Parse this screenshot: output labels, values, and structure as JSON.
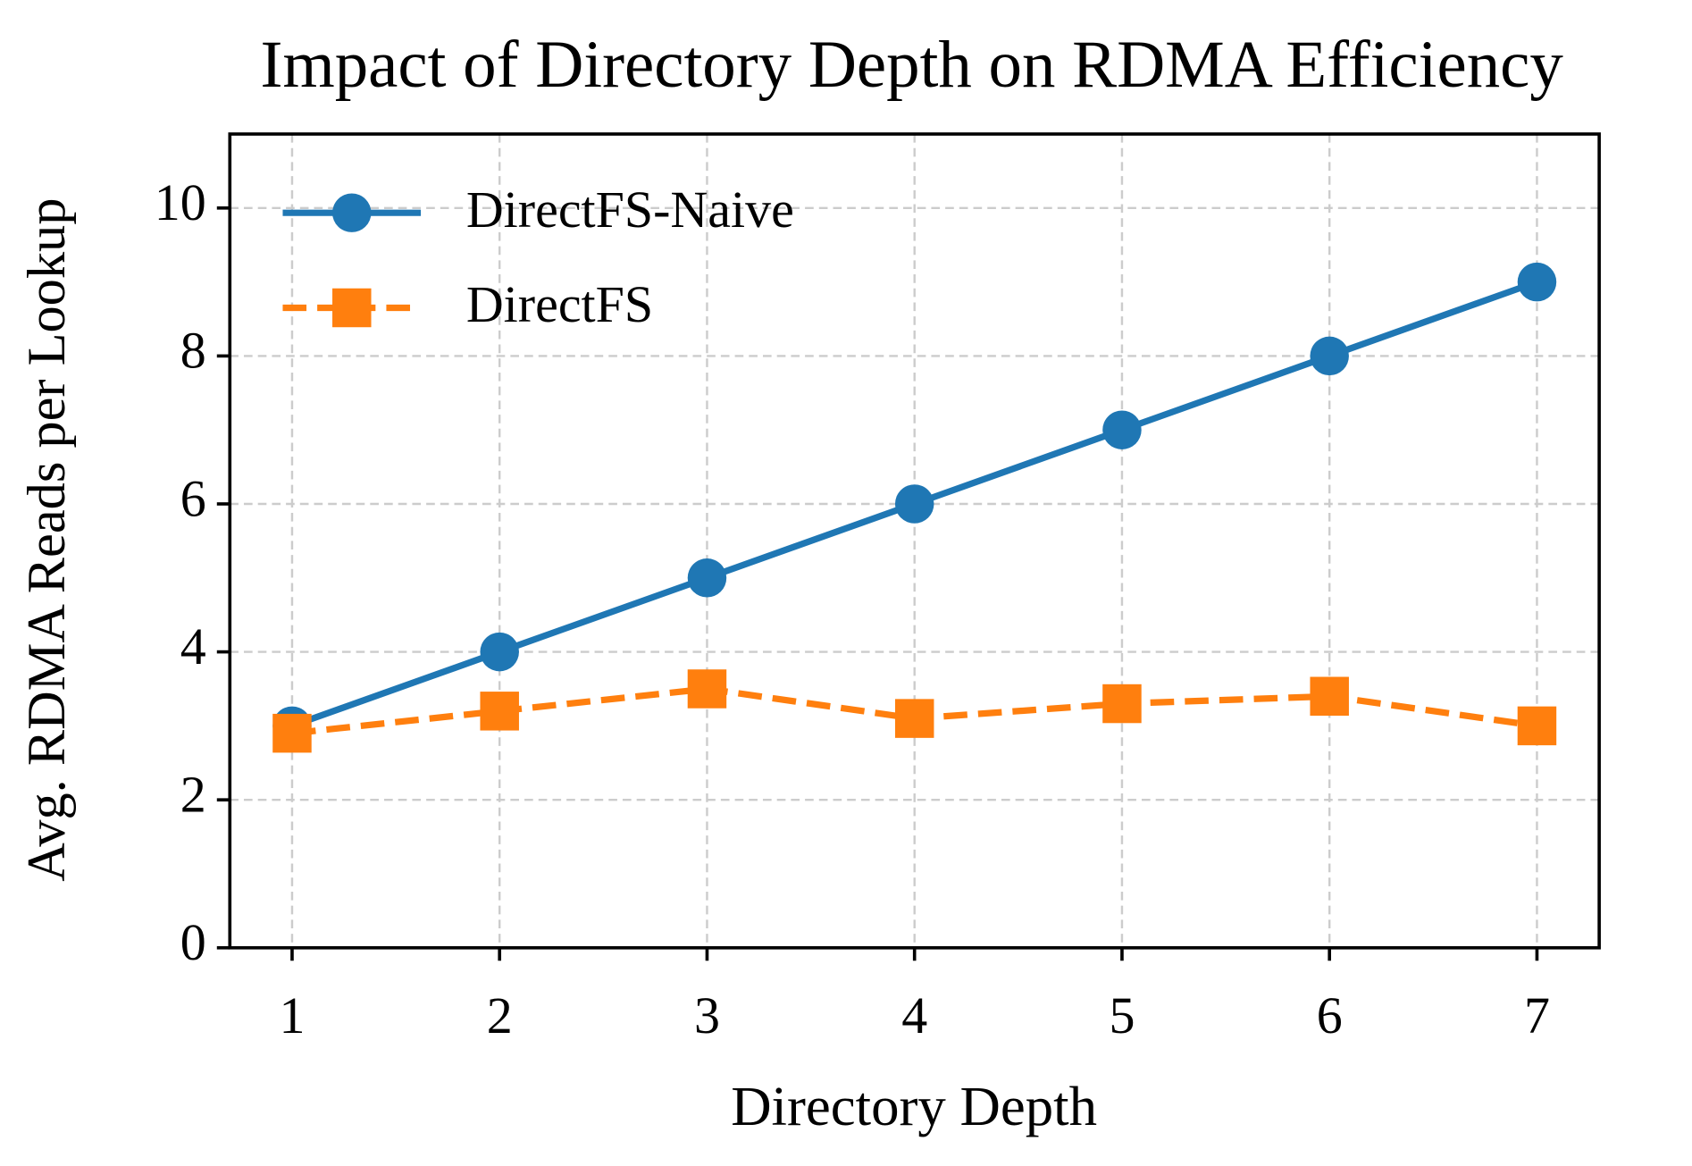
{
  "chart_data": {
    "type": "line",
    "title": "Impact of Directory Depth on RDMA Efficiency",
    "x_label": "Directory Depth",
    "y_label": "Avg. RDMA Reads per Lookup",
    "x": [
      1,
      2,
      3,
      4,
      5,
      6,
      7
    ],
    "xlim": [
      0.7,
      7.3
    ],
    "xticks": [
      1,
      2,
      3,
      4,
      5,
      6,
      7
    ],
    "ylim": [
      0,
      11
    ],
    "yticks": [
      0,
      2,
      4,
      6,
      8,
      10
    ],
    "grid": true,
    "legend": "upper left",
    "series": [
      {
        "name": "DirectFS-Naive",
        "color": "#1f77b4",
        "marker": "circle",
        "linestyle": "solid",
        "values": [
          3,
          4,
          5,
          6,
          7,
          8,
          9
        ]
      },
      {
        "name": "DirectFS",
        "color": "#ff7f0e",
        "marker": "square",
        "linestyle": "dashed",
        "values": [
          2.9,
          3.2,
          3.5,
          3.1,
          3.3,
          3.4,
          3.0
        ]
      }
    ]
  }
}
